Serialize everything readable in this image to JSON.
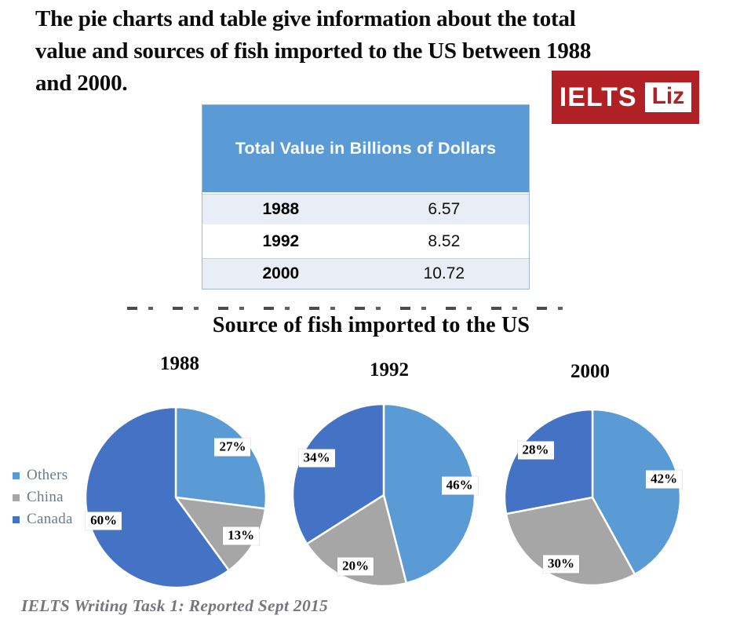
{
  "page": {
    "title_lines": [
      "The pie charts and table give information about the total",
      "value and sources of fish imported to the US between 1988",
      "and 2000."
    ],
    "footer": "IELTS Writing Task 1: Reported Sept 2015"
  },
  "logo": {
    "brand": "IELTS",
    "name": "Liz",
    "bg_color": "#b02025"
  },
  "table": {
    "header": "Total Value in Billions of Dollars",
    "header_bg": "#5b9bd5",
    "row_alt_bg": "#e9edf5",
    "rows": [
      {
        "year": "1988",
        "value": "6.57"
      },
      {
        "year": "1992",
        "value": "8.52"
      },
      {
        "year": "2000",
        "value": "10.72"
      }
    ]
  },
  "chart_data": {
    "type": "pie",
    "title": "Source of fish imported to the US",
    "legend": [
      "Others",
      "China",
      "Canada"
    ],
    "legend_position": "left",
    "start_angle_deg": 0,
    "direction": "clockwise",
    "label_format": "{pct}%",
    "colors": {
      "Others": "#5b9bd5",
      "China": "#a6a6a6",
      "Canada": "#4472c4"
    },
    "charts": [
      {
        "year": "1988",
        "slices": [
          {
            "name": "Others",
            "pct": 27
          },
          {
            "name": "China",
            "pct": 13
          },
          {
            "name": "Canada",
            "pct": 60
          }
        ]
      },
      {
        "year": "1992",
        "slices": [
          {
            "name": "Others",
            "pct": 46
          },
          {
            "name": "China",
            "pct": 20
          },
          {
            "name": "Canada",
            "pct": 34
          }
        ]
      },
      {
        "year": "2000",
        "slices": [
          {
            "name": "Others",
            "pct": 42
          },
          {
            "name": "China",
            "pct": 30
          },
          {
            "name": "Canada",
            "pct": 28
          }
        ]
      }
    ]
  }
}
